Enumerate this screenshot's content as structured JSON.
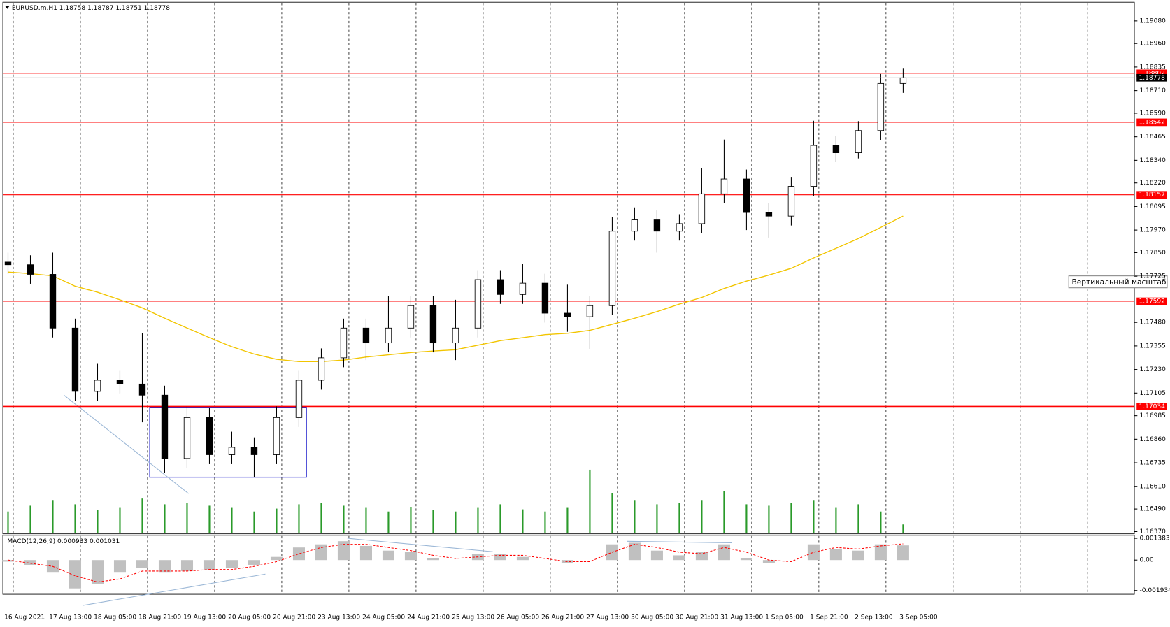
{
  "chart_data": [
    {
      "type": "candlestick",
      "title": "EURUSD.m,H1  1.18758 1.18787 1.18751 1.18778",
      "tooltip": "Вертикальный масштаб",
      "up_color": "#ffffff",
      "down_color": "#000000",
      "ma_color": "#f2c500",
      "volume_color": "#2a9a2a",
      "level_color": "#ff0000",
      "ylim": [
        1.16362,
        1.19171
      ],
      "yticks": [
        {
          "value": 1.1908,
          "label": "1.19080"
        },
        {
          "value": 1.1896,
          "label": "1.18960"
        },
        1.18835,
        {
          "value": 1.1871,
          "label": "1.18710"
        },
        {
          "value": 1.1859,
          "label": "1.18590"
        },
        1.18465,
        {
          "value": 1.1834,
          "label": "1.18340"
        },
        {
          "value": 1.1822,
          "label": "1.18220"
        },
        1.18095,
        {
          "value": 1.1797,
          "label": "1.17970"
        },
        {
          "value": 1.1785,
          "label": "1.17850"
        },
        1.17725,
        {
          "value": 1.1748,
          "label": "1.17480"
        },
        1.17355,
        {
          "value": 1.1723,
          "label": "1.17230"
        },
        1.17105,
        1.16985,
        {
          "value": 1.1686,
          "label": "1.16860"
        },
        1.16735,
        {
          "value": 1.1661,
          "label": "1.16610"
        },
        {
          "value": 1.1649,
          "label": "1.16490"
        },
        {
          "value": 1.1637,
          "label": "1.16370"
        }
      ],
      "levels": [
        1.18802,
        1.18542,
        1.18157,
        1.17592,
        1.17034
      ],
      "x_labels": [
        "16 Aug 2021",
        "17 Aug 13:00",
        "18 Aug 05:00",
        "18 Aug 21:00",
        "19 Aug 13:00",
        "20 Aug 05:00",
        "20 Aug 21:00",
        "23 Aug 13:00",
        "24 Aug 05:00",
        "24 Aug 21:00",
        "25 Aug 13:00",
        "26 Aug 05:00",
        "26 Aug 21:00",
        "27 Aug 13:00",
        "30 Aug 05:00",
        "30 Aug 21:00",
        "31 Aug 13:00",
        "1 Sep 05:00",
        "1 Sep 21:00",
        "2 Sep 13:00",
        "3 Sep 05:00"
      ],
      "open": [
        1.178,
        1.17786,
        1.17735,
        1.1745,
        1.17114,
        1.17173,
        1.17153,
        1.17094,
        1.16758,
        1.16975,
        1.16778,
        1.16817,
        1.16778,
        1.16975,
        1.17173,
        1.17292,
        1.1745,
        1.17371,
        1.1745,
        1.17569,
        1.17371,
        1.1745,
        1.17707,
        1.17628,
        1.17688,
        1.17529,
        1.1751,
        1.17569,
        1.17964,
        1.18024,
        1.17964,
        1.18004,
        1.18162,
        1.18241,
        1.18063,
        1.18044,
        1.18202,
        1.18419,
        1.1838,
        1.18498,
        1.18748
      ],
      "high": [
        1.1785,
        1.17836,
        1.1785,
        1.175,
        1.1726,
        1.17223,
        1.17422,
        1.17144,
        1.17034,
        1.17025,
        1.169,
        1.1687,
        1.17034,
        1.17223,
        1.17342,
        1.175,
        1.175,
        1.1762,
        1.17619,
        1.17619,
        1.176,
        1.17757,
        1.17757,
        1.1779,
        1.17738,
        1.1768,
        1.17619,
        1.1804,
        1.1809,
        1.18074,
        1.18054,
        1.183,
        1.1845,
        1.18291,
        1.18113,
        1.18252,
        1.1855,
        1.18469,
        1.18548,
        1.18798,
        1.1883
      ],
      "low": [
        1.17736,
        1.17685,
        1.174,
        1.17064,
        1.17064,
        1.17103,
        1.1695,
        1.1668,
        1.16708,
        1.16728,
        1.16728,
        1.1666,
        1.16728,
        1.16925,
        1.17123,
        1.17242,
        1.1728,
        1.17321,
        1.174,
        1.17321,
        1.1728,
        1.174,
        1.17578,
        1.17578,
        1.17479,
        1.1743,
        1.1734,
        1.17519,
        1.17914,
        1.1785,
        1.17914,
        1.17954,
        1.18112,
        1.1797,
        1.1793,
        1.17994,
        1.18152,
        1.1833,
        1.1835,
        1.18448,
        1.18698
      ],
      "close": [
        1.17786,
        1.17735,
        1.1745,
        1.17114,
        1.17173,
        1.17153,
        1.17094,
        1.16758,
        1.16975,
        1.16778,
        1.16817,
        1.16778,
        1.16975,
        1.17173,
        1.17292,
        1.1745,
        1.17371,
        1.1745,
        1.17569,
        1.17371,
        1.1745,
        1.17707,
        1.17628,
        1.17688,
        1.17529,
        1.1751,
        1.17569,
        1.17964,
        1.18024,
        1.17964,
        1.18004,
        1.18162,
        1.18241,
        1.18063,
        1.18044,
        1.18202,
        1.18419,
        1.1838,
        1.18498,
        1.18748,
        1.18778
      ],
      "ma": [
        1.17747,
        1.17739,
        1.17727,
        1.17672,
        1.1764,
        1.176,
        1.17557,
        1.17502,
        1.1745,
        1.17399,
        1.17351,
        1.17312,
        1.17284,
        1.17272,
        1.17272,
        1.1728,
        1.17296,
        1.17308,
        1.1732,
        1.17328,
        1.17335,
        1.17359,
        1.17383,
        1.17399,
        1.17415,
        1.17422,
        1.17438,
        1.1747,
        1.17502,
        1.17537,
        1.17577,
        1.17612,
        1.1766,
        1.17699,
        1.17731,
        1.17767,
        1.17822,
        1.17873,
        1.17925,
        1.17984,
        1.18044
      ],
      "volume": [
        30,
        38,
        45,
        40,
        32,
        35,
        48,
        40,
        42,
        38,
        35,
        30,
        34,
        40,
        42,
        38,
        35,
        30,
        36,
        32,
        30,
        35,
        40,
        33,
        30,
        35,
        88,
        55,
        45,
        40,
        42,
        45,
        58,
        40,
        38,
        42,
        45,
        35,
        40,
        30,
        12
      ]
    },
    {
      "type": "macd",
      "title": "MACD(12,26,9) 0.000933 0.001031",
      "hist_color": "#c0c0c0",
      "signal_color": "#ff0000",
      "ylim": [
        -0.001934,
        0.001383
      ],
      "yticks": [
        0.001383,
        {
          "value": 0,
          "label": "0.00"
        },
        -0.001934
      ],
      "histogram": [
        -0.0001,
        -0.0003,
        -0.0008,
        -0.0018,
        -0.0015,
        -0.0008,
        -0.0005,
        -0.0008,
        -0.0007,
        -0.0006,
        -0.0005,
        -0.0003,
        0.0002,
        0.0008,
        0.001,
        0.0012,
        0.0009,
        0.0006,
        0.0005,
        0.0001,
        0,
        0.0004,
        0.0004,
        0.0002,
        0,
        -0.0002,
        0,
        0.001,
        0.0011,
        0.0006,
        0.0003,
        0.0005,
        0.001,
        0.0001,
        -0.0002,
        0,
        0.001,
        0.0007,
        0.0006,
        0.001,
        0.000933
      ],
      "signal": [
        0,
        -0.0002,
        -0.0004,
        -0.001,
        -0.0014,
        -0.0012,
        -0.0007,
        -0.0007,
        -0.0007,
        -0.0006,
        -0.0006,
        -0.0004,
        -0.0001,
        0.0004,
        0.0008,
        0.001,
        0.001,
        0.0008,
        0.0006,
        0.0003,
        0.0001,
        0.0002,
        0.0003,
        0.0003,
        0.0001,
        -0.0001,
        -0.0001,
        0.0005,
        0.001,
        0.0008,
        0.0005,
        0.0004,
        0.0008,
        0.0005,
        0,
        -0.0001,
        0.0005,
        0.0008,
        0.0007,
        0.0009,
        0.001031
      ]
    }
  ]
}
